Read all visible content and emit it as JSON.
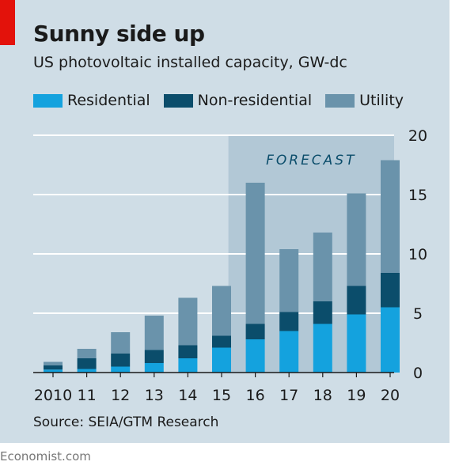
{
  "header": {
    "title": "Sunny side up",
    "subtitle": "US photovoltaic installed capacity, GW-dc"
  },
  "forecast_label": "FORECAST",
  "source": "Source: SEIA/GTM Research",
  "credit": "Economist.com",
  "colors": {
    "residential": "#14a2de",
    "non_residential": "#0b4d6b",
    "utility": "#6a93ab",
    "forecast_band": "#b2c8d6",
    "gridline": "#ffffff",
    "accent": "#e3120b"
  },
  "chart_data": {
    "type": "bar",
    "stacked": true,
    "categories": [
      "2010",
      "11",
      "12",
      "13",
      "14",
      "15",
      "16",
      "17",
      "18",
      "19",
      "20"
    ],
    "series": [
      {
        "name": "Residential",
        "color": "#14a2de",
        "values": [
          0.25,
          0.3,
          0.5,
          0.8,
          1.2,
          2.1,
          2.8,
          3.5,
          4.1,
          4.9,
          5.5
        ]
      },
      {
        "name": "Non-residential",
        "color": "#0b4d6b",
        "values": [
          0.35,
          0.9,
          1.1,
          1.1,
          1.1,
          1.0,
          1.3,
          1.6,
          1.9,
          2.4,
          2.9
        ]
      },
      {
        "name": "Utility",
        "color": "#6a93ab",
        "values": [
          0.3,
          0.8,
          1.8,
          2.9,
          4.0,
          4.2,
          11.9,
          5.3,
          5.8,
          7.8,
          9.5
        ]
      }
    ],
    "forecast_from": "16",
    "ylim": [
      0,
      20
    ],
    "yticks": [
      0,
      5,
      10,
      15,
      20
    ],
    "y_axis_side": "right",
    "grid": true,
    "legend_position": "top-left"
  }
}
